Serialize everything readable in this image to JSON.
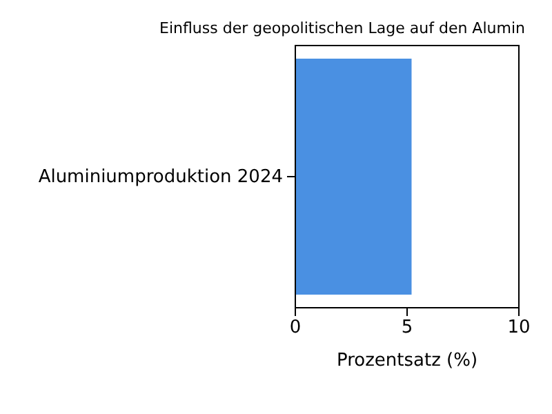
{
  "chart_data": {
    "type": "bar",
    "orientation": "horizontal",
    "title": "Einfluss der geopolitischen Lage auf den Alumin",
    "xlabel": "Prozentsatz (%)",
    "categories": [
      "Aluminiumproduktion 2024"
    ],
    "series": [
      {
        "color": "#4a90e2",
        "values": [
          5.2
        ]
      }
    ],
    "xlim": [
      0,
      10
    ],
    "xticks": [
      0,
      5,
      10
    ],
    "grid": false
  }
}
